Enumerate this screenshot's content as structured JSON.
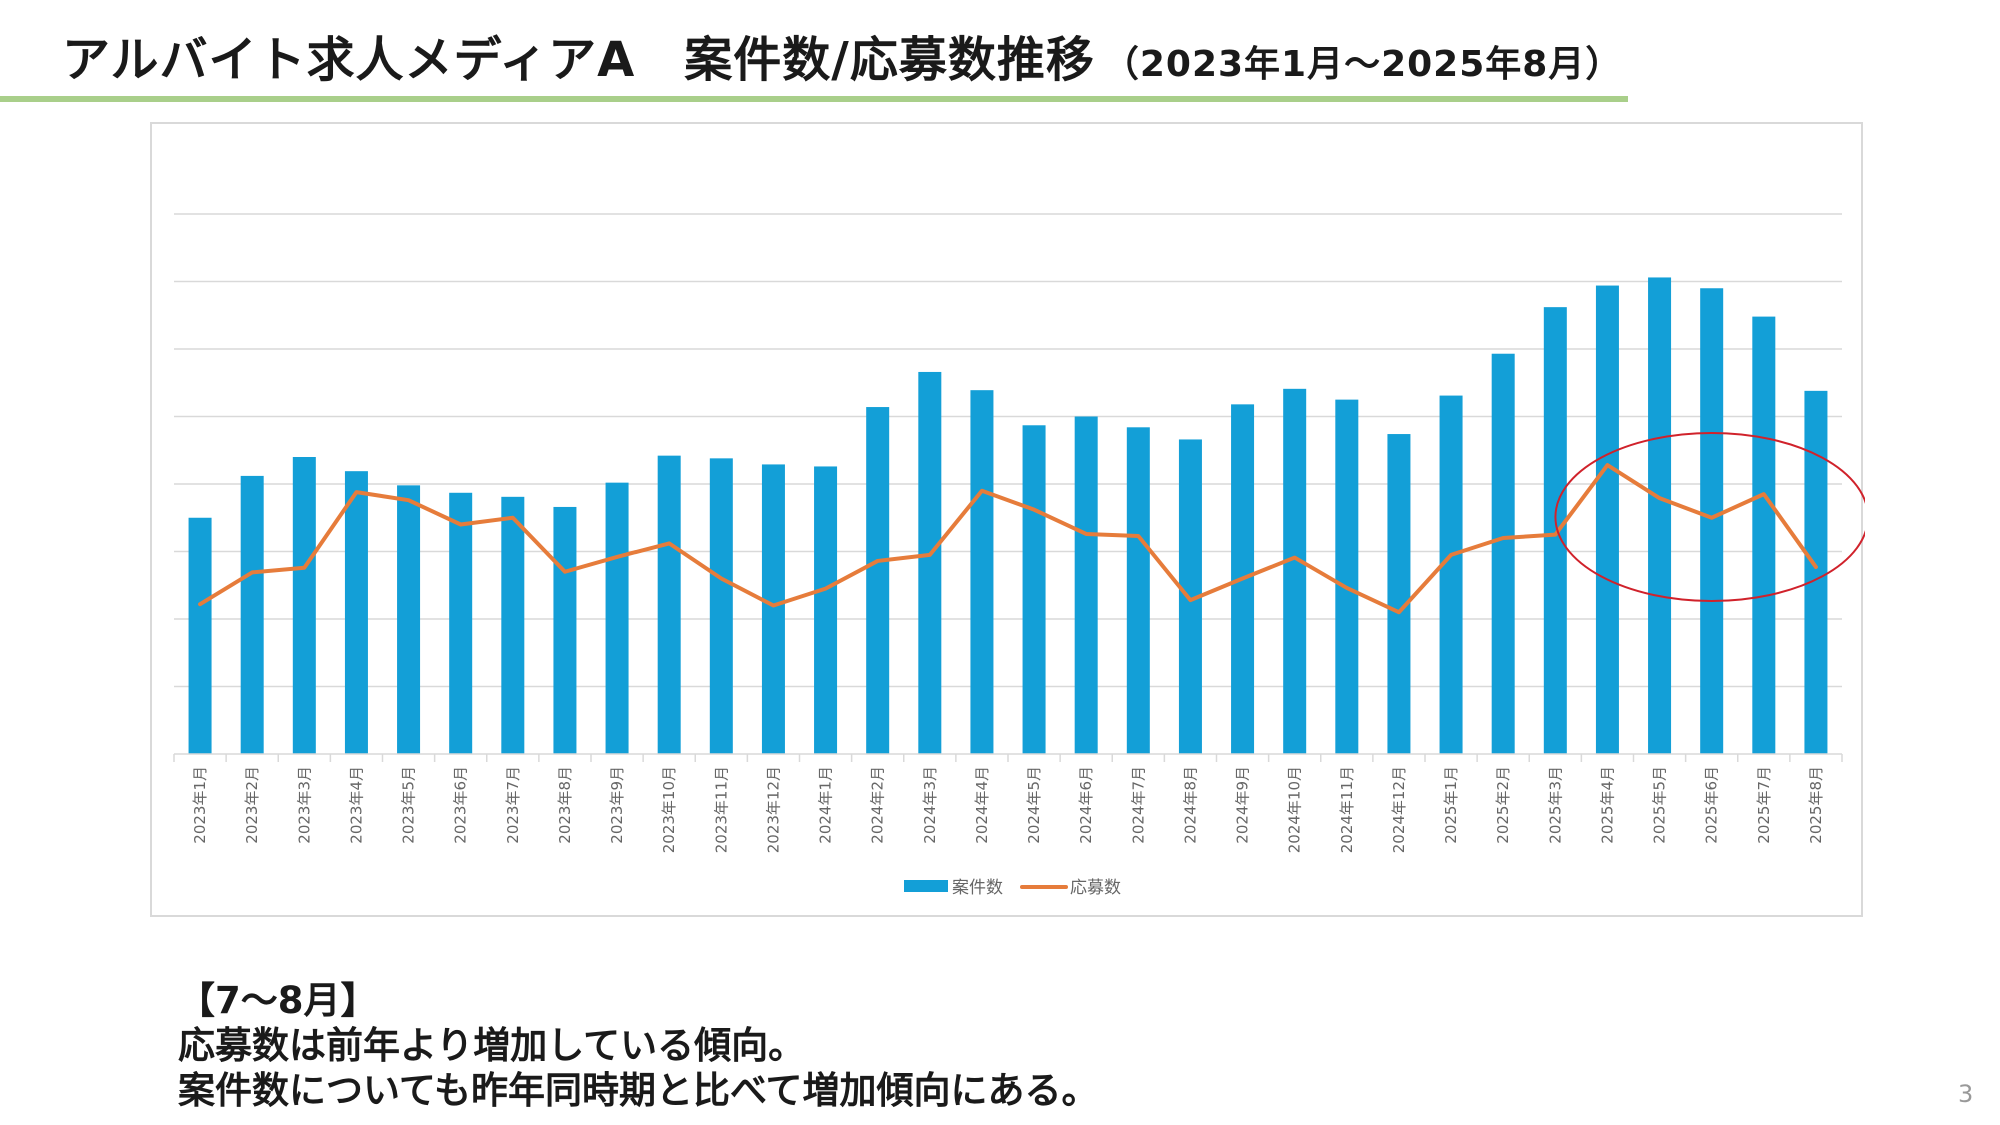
{
  "slide": {
    "title": "アルバイト求人メディアA　案件数/応募数推移",
    "title_period": "（2023年1月～2025年8月）",
    "page_number": "3"
  },
  "note": {
    "heading": "【7～8月】",
    "line1": "応募数は前年より増加している傾向。",
    "line2": "案件数についても昨年同時期と比べて増加傾向にある。"
  },
  "colors": {
    "bar": "#139fd7",
    "line": "#e67c3b",
    "grid": "#d9d9d9",
    "highlight_circle": "#d0222b",
    "title_rule": "#a9cf8a"
  },
  "chart_data": {
    "type": "bar",
    "categories": [
      "2023年1月",
      "2023年2月",
      "2023年3月",
      "2023年4月",
      "2023年5月",
      "2023年6月",
      "2023年7月",
      "2023年8月",
      "2023年9月",
      "2023年10月",
      "2023年11月",
      "2023年12月",
      "2024年1月",
      "2024年2月",
      "2024年3月",
      "2024年4月",
      "2024年5月",
      "2024年6月",
      "2024年7月",
      "2024年8月",
      "2024年9月",
      "2024年10月",
      "2024年11月",
      "2024年12月",
      "2025年1月",
      "2025年2月",
      "2025年3月",
      "2025年4月",
      "2025年5月",
      "2025年6月",
      "2025年7月",
      "2025年8月"
    ],
    "series": [
      {
        "name": "案件数",
        "type": "bar",
        "values": [
          3.5,
          4.12,
          4.4,
          4.19,
          3.98,
          3.87,
          3.81,
          3.66,
          4.02,
          4.42,
          4.38,
          4.29,
          4.26,
          5.14,
          5.66,
          5.39,
          4.87,
          5.0,
          4.84,
          4.66,
          5.18,
          5.41,
          5.25,
          4.74,
          5.31,
          5.93,
          6.62,
          6.94,
          7.06,
          6.9,
          6.48,
          5.38
        ]
      },
      {
        "name": "応募数",
        "type": "line",
        "values": [
          2.22,
          2.69,
          2.76,
          3.88,
          3.76,
          3.4,
          3.5,
          2.7,
          2.92,
          3.12,
          2.6,
          2.2,
          2.45,
          2.86,
          2.95,
          3.9,
          3.62,
          3.26,
          3.23,
          2.28,
          2.6,
          2.91,
          2.46,
          2.1,
          2.95,
          3.2,
          3.25,
          4.28,
          3.79,
          3.5,
          3.85,
          2.77
        ]
      }
    ],
    "ylim": [
      0,
      8
    ],
    "grid": true,
    "y_tick_labels_visible": false,
    "legend": "bottom-center",
    "highlight": {
      "shape": "ellipse",
      "from": "2025年4月",
      "to": "2025年8月"
    }
  }
}
